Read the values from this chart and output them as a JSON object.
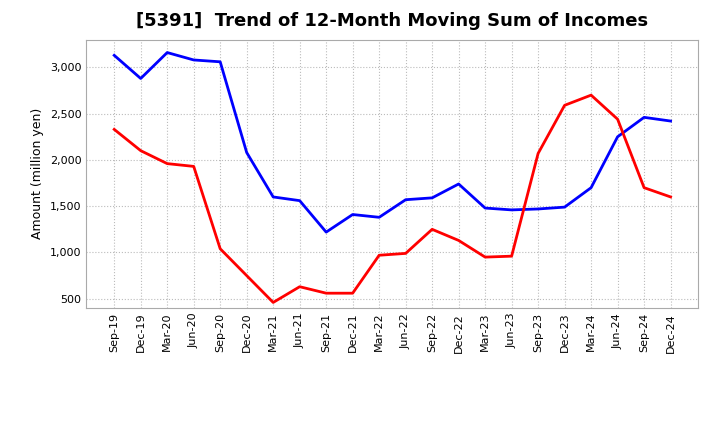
{
  "title": "[5391]  Trend of 12-Month Moving Sum of Incomes",
  "ylabel": "Amount (million yen)",
  "x_labels": [
    "Sep-19",
    "Dec-19",
    "Mar-20",
    "Jun-20",
    "Sep-20",
    "Dec-20",
    "Mar-21",
    "Jun-21",
    "Sep-21",
    "Dec-21",
    "Mar-22",
    "Jun-22",
    "Sep-22",
    "Dec-22",
    "Mar-23",
    "Jun-23",
    "Sep-23",
    "Dec-23",
    "Mar-24",
    "Jun-24",
    "Sep-24",
    "Dec-24"
  ],
  "ordinary_income": [
    3130,
    2880,
    3160,
    3080,
    3060,
    2080,
    1600,
    1560,
    1220,
    1410,
    1380,
    1570,
    1590,
    1740,
    1480,
    1460,
    1470,
    1490,
    1700,
    2250,
    2460,
    2420
  ],
  "net_income": [
    2330,
    2100,
    1960,
    1930,
    1040,
    750,
    460,
    630,
    560,
    560,
    970,
    990,
    1250,
    1130,
    950,
    960,
    2070,
    2590,
    2700,
    2440,
    1700,
    1600
  ],
  "ordinary_color": "#0000ff",
  "net_color": "#ff0000",
  "ylim_min": 400,
  "ylim_max": 3300,
  "yticks": [
    500,
    1000,
    1500,
    2000,
    2500,
    3000
  ],
  "background_color": "#ffffff",
  "grid_color": "#bbbbbb",
  "line_width": 2.0,
  "title_fontsize": 13,
  "axis_label_fontsize": 9,
  "tick_fontsize": 8
}
